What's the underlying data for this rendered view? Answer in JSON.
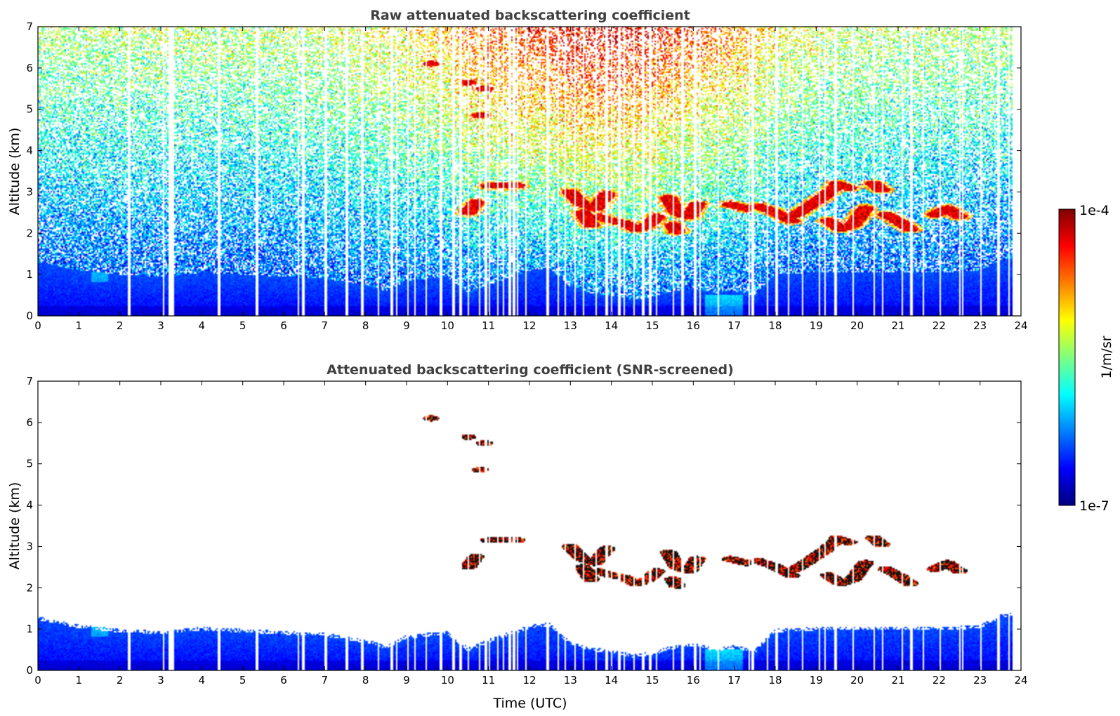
{
  "colors": {
    "jet": [
      "#00007f",
      "#0000ff",
      "#007fff",
      "#00ffff",
      "#7fff7f",
      "#ffff00",
      "#ff7f00",
      "#ff0000",
      "#7f0000"
    ],
    "cloud_core": "#111111"
  },
  "chart_data": [
    {
      "type": "heatmap",
      "title": "Raw attenuated backscattering coefficient",
      "xlabel": "",
      "ylabel": "Altitude (km)",
      "xlim": [
        0,
        24
      ],
      "ylim": [
        0,
        7
      ],
      "xticks": [
        0,
        1,
        2,
        3,
        4,
        5,
        6,
        7,
        8,
        9,
        10,
        11,
        12,
        13,
        14,
        15,
        16,
        17,
        18,
        19,
        20,
        21,
        22,
        23,
        24
      ],
      "yticks": [
        0,
        1,
        2,
        3,
        4,
        5,
        6,
        7
      ],
      "screened": false
    },
    {
      "type": "heatmap",
      "title": "Attenuated backscattering coefficient (SNR-screened)",
      "xlabel": "Time (UTC)",
      "ylabel": "Altitude (km)",
      "xlim": [
        0,
        24
      ],
      "ylim": [
        0,
        7
      ],
      "xticks": [
        0,
        1,
        2,
        3,
        4,
        5,
        6,
        7,
        8,
        9,
        10,
        11,
        12,
        13,
        14,
        15,
        16,
        17,
        18,
        19,
        20,
        21,
        22,
        23,
        24
      ],
      "yticks": [
        0,
        1,
        2,
        3,
        4,
        5,
        6,
        7
      ],
      "screened": true
    }
  ],
  "colorbar": {
    "max_label": "1e-4",
    "min_label": "1e-7",
    "unit": "1/m/sr",
    "scale": "log",
    "range": [
      1e-07,
      0.0001
    ]
  },
  "features": {
    "missing_profiles_utc": [
      2.2,
      3.05,
      3.2,
      3.25,
      4.4,
      5.3,
      6.35,
      6.45,
      7.0,
      7.5,
      7.9,
      8.3,
      8.6,
      8.75,
      9.0,
      9.2,
      9.45,
      9.8,
      10.1,
      10.3,
      10.5,
      10.75,
      10.9,
      11.0,
      11.2,
      11.35,
      11.5,
      11.6,
      11.7,
      11.9,
      12.4,
      12.7,
      12.85,
      13.1,
      13.3,
      13.6,
      13.85,
      14.0,
      14.15,
      14.3,
      14.55,
      14.75,
      14.9,
      15.1,
      15.5,
      15.7,
      16.0,
      16.15,
      16.6,
      17.35,
      17.4,
      17.8,
      18.0,
      18.3,
      18.65,
      19.05,
      19.2,
      19.45,
      19.9,
      20.4,
      20.6,
      21.1,
      21.3,
      21.6,
      22.0,
      22.5,
      22.55,
      23.0,
      23.4,
      23.7,
      23.8
    ],
    "boundary_layer_top_km": [
      [
        0,
        1.3
      ],
      [
        1,
        1.1
      ],
      [
        2,
        1.0
      ],
      [
        3,
        0.95
      ],
      [
        4,
        1.05
      ],
      [
        5,
        1.0
      ],
      [
        6,
        0.95
      ],
      [
        7,
        0.9
      ],
      [
        8,
        0.75
      ],
      [
        8.5,
        0.6
      ],
      [
        9,
        0.85
      ],
      [
        10,
        0.95
      ],
      [
        10.5,
        0.55
      ],
      [
        11,
        0.75
      ],
      [
        12,
        1.1
      ],
      [
        12.5,
        1.15
      ],
      [
        13,
        0.7
      ],
      [
        13.5,
        0.55
      ],
      [
        14,
        0.5
      ],
      [
        14.5,
        0.4
      ],
      [
        15,
        0.45
      ],
      [
        15.5,
        0.6
      ],
      [
        16,
        0.65
      ],
      [
        16.5,
        0.55
      ],
      [
        17,
        0.6
      ],
      [
        17.5,
        0.5
      ],
      [
        18,
        1.0
      ],
      [
        19,
        1.05
      ],
      [
        20,
        1.05
      ],
      [
        21,
        1.05
      ],
      [
        22,
        1.05
      ],
      [
        23,
        1.1
      ],
      [
        23.5,
        1.35
      ],
      [
        23.8,
        1.4
      ]
    ],
    "cloud_segments": [
      {
        "t": [
          13.0,
          13.3,
          13.6,
          13.9
        ],
        "z": [
          3.0,
          2.7,
          2.6,
          2.95
        ]
      },
      {
        "t": [
          13.3,
          13.5
        ],
        "z": [
          2.5,
          2.2
        ]
      },
      {
        "t": [
          13.7,
          14.0,
          14.3,
          14.6,
          14.9,
          15.1
        ],
        "z": [
          2.4,
          2.3,
          2.25,
          2.1,
          2.2,
          2.4
        ]
      },
      {
        "t": [
          15.4,
          15.6,
          15.9,
          16.1
        ],
        "z": [
          2.85,
          2.5,
          2.4,
          2.7
        ]
      },
      {
        "t": [
          15.5,
          15.6
        ],
        "z": [
          2.2,
          2.05
        ]
      },
      {
        "t": [
          16.9,
          17.3
        ],
        "z": [
          2.7,
          2.6
        ]
      },
      {
        "t": [
          17.6,
          17.9,
          18.2,
          18.4
        ],
        "z": [
          2.65,
          2.55,
          2.4,
          2.3
        ]
      },
      {
        "t": [
          18.5,
          18.9,
          19.2,
          19.5
        ],
        "z": [
          2.45,
          2.7,
          2.9,
          3.15
        ]
      },
      {
        "t": [
          19.5,
          19.8
        ],
        "z": [
          3.2,
          3.1
        ]
      },
      {
        "t": [
          19.3,
          19.6,
          19.9,
          20.2
        ],
        "z": [
          2.3,
          2.1,
          2.2,
          2.6
        ]
      },
      {
        "t": [
          20.4,
          20.6
        ],
        "z": [
          3.2,
          3.05
        ]
      },
      {
        "t": [
          20.7,
          21.0,
          21.3
        ],
        "z": [
          2.45,
          2.3,
          2.1
        ]
      },
      {
        "t": [
          21.9,
          22.2,
          22.5
        ],
        "z": [
          2.45,
          2.6,
          2.4
        ]
      },
      {
        "t": [
          11.0,
          11.7
        ],
        "z": [
          3.15,
          3.15
        ]
      },
      {
        "t": [
          10.5,
          10.7
        ],
        "z": [
          2.5,
          2.75
        ]
      }
    ],
    "elevated_patches": [
      {
        "t": 9.6,
        "z": 6.1
      },
      {
        "t": 10.5,
        "z": 5.65
      },
      {
        "t": 10.9,
        "z": 5.5
      },
      {
        "t": 10.8,
        "z": 4.85
      }
    ]
  }
}
